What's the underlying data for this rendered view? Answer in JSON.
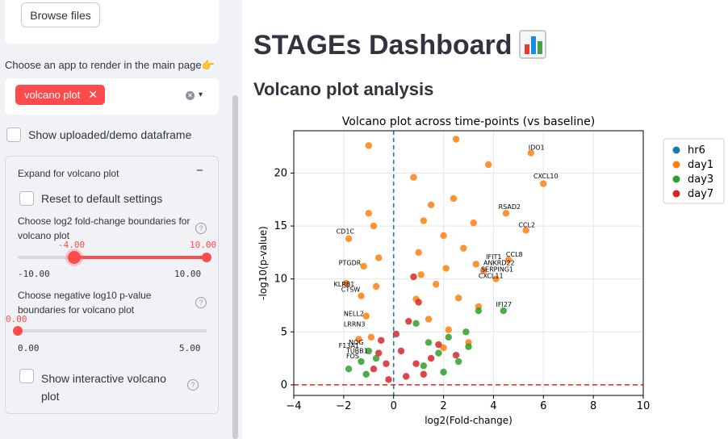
{
  "sidebar": {
    "browse_label": "Browse files",
    "choose_app_label": "Choose an app to render in the main page👉",
    "selected_tag": "volcano plot",
    "tag_remove": "✕",
    "clear_icon": "×",
    "dropdown_icon": "▾",
    "show_df_label": "Show uploaded/demo dataframe",
    "expander": {
      "title": "Expand for volcano plot",
      "collapse_icon": "−",
      "reset_label": "Reset to default settings",
      "fc_label": "Choose log2 fold-change boundaries for volcano plot",
      "fc_low": "-4.00",
      "fc_high": "10.00",
      "fc_min": "-10.00",
      "fc_max": "10.00",
      "pval_label": "Choose negative log10 p-value boundaries for volcano plot",
      "pval_value": "0.00",
      "pval_min": "0.00",
      "pval_max": "5.00",
      "interactive_label": "Show interactive volcano plot",
      "help_icon": "?"
    }
  },
  "main": {
    "title": "STAGEs Dashboard",
    "subtitle": "Volcano plot analysis"
  },
  "chart_data": {
    "type": "scatter",
    "title": "Volcano plot across time-points (vs baseline)",
    "xlabel": "log2(Fold-change)",
    "ylabel": "-log10(p-value)",
    "xlim": [
      -4,
      10
    ],
    "ylim": [
      -1,
      24
    ],
    "xticks": [
      -4,
      -2,
      0,
      2,
      4,
      6,
      8,
      10
    ],
    "yticks": [
      0,
      5,
      10,
      15,
      20
    ],
    "grid": true,
    "legend_position": "outside-right",
    "reference_lines": {
      "vertical_x": 0,
      "horizontal_y": 0
    },
    "colors": {
      "hr6": "#1f77b4",
      "day1": "#ff7f0e",
      "day3": "#2ca02c",
      "day7": "#d62728",
      "ref_vline": "#1f77b4",
      "ref_hline": "#d62728"
    },
    "series": [
      {
        "name": "hr6",
        "points": []
      },
      {
        "name": "day1",
        "points": [
          [
            -1.0,
            22.6
          ],
          [
            2.5,
            23.2
          ],
          [
            3.8,
            20.8
          ],
          [
            5.5,
            21.9
          ],
          [
            6.0,
            19.0
          ],
          [
            4.5,
            16.2
          ],
          [
            5.3,
            14.6
          ],
          [
            -1.8,
            13.8
          ],
          [
            -1.2,
            11.2
          ],
          [
            -1.9,
            9.6
          ],
          [
            -1.1,
            6.5
          ],
          [
            1.0,
            12.5
          ],
          [
            2.0,
            14.1
          ],
          [
            3.3,
            11.4
          ],
          [
            3.6,
            10.8
          ],
          [
            4.1,
            10.0
          ],
          [
            4.6,
            11.8
          ],
          [
            3.4,
            7.4
          ],
          [
            1.5,
            17.0
          ],
          [
            0.8,
            19.6
          ],
          [
            1.2,
            15.5
          ],
          [
            2.6,
            8.2
          ],
          [
            2.2,
            5.2
          ],
          [
            3.0,
            4.0
          ],
          [
            2.0,
            3.5
          ],
          [
            -1.3,
            8.4
          ],
          [
            -0.8,
            15.0
          ],
          [
            -0.6,
            12.0
          ],
          [
            -0.9,
            4.5
          ],
          [
            1.7,
            9.5
          ],
          [
            2.8,
            12.9
          ],
          [
            1.4,
            6.2
          ],
          [
            -1.4,
            4.3
          ],
          [
            3.2,
            15.3
          ],
          [
            2.4,
            17.6
          ],
          [
            1.1,
            10.4
          ],
          [
            -0.7,
            9.3
          ],
          [
            0.9,
            8.1
          ],
          [
            -1.0,
            16.2
          ],
          [
            2.1,
            11.0
          ]
        ]
      },
      {
        "name": "day3",
        "points": [
          [
            4.4,
            7.0
          ],
          [
            3.4,
            7.0
          ],
          [
            2.9,
            5.0
          ],
          [
            2.2,
            4.5
          ],
          [
            1.8,
            3.0
          ],
          [
            -1.0,
            3.2
          ],
          [
            -1.3,
            2.2
          ],
          [
            -1.8,
            1.5
          ],
          [
            1.4,
            4.0
          ],
          [
            2.6,
            2.2
          ],
          [
            0.9,
            5.8
          ],
          [
            -0.7,
            2.5
          ],
          [
            1.2,
            1.8
          ],
          [
            3.0,
            3.6
          ],
          [
            2.0,
            1.2
          ],
          [
            -1.1,
            1.0
          ]
        ]
      },
      {
        "name": "day7",
        "points": [
          [
            0.8,
            10.2
          ],
          [
            1.0,
            7.8
          ],
          [
            0.6,
            6.0
          ],
          [
            -0.5,
            4.2
          ],
          [
            0.3,
            3.2
          ],
          [
            -0.3,
            2.0
          ],
          [
            1.5,
            2.5
          ],
          [
            2.5,
            2.8
          ],
          [
            -0.8,
            1.5
          ],
          [
            0.5,
            0.8
          ],
          [
            1.2,
            1.0
          ],
          [
            -0.2,
            0.5
          ],
          [
            0.1,
            4.8
          ],
          [
            1.8,
            3.8
          ],
          [
            -0.6,
            3.0
          ],
          [
            0.9,
            2.0
          ]
        ]
      }
    ],
    "annotations": [
      {
        "text": "IDO1",
        "x": 5.4,
        "y": 22.2
      },
      {
        "text": "CXCL10",
        "x": 5.6,
        "y": 19.5
      },
      {
        "text": "RSAD2",
        "x": 4.2,
        "y": 16.6
      },
      {
        "text": "CCL2",
        "x": 5.0,
        "y": 14.9
      },
      {
        "text": "CD1C",
        "x": -2.3,
        "y": 14.3
      },
      {
        "text": "CCL8",
        "x": 4.5,
        "y": 12.1
      },
      {
        "text": "IFIT1",
        "x": 3.7,
        "y": 11.9
      },
      {
        "text": "ANKRD22",
        "x": 3.6,
        "y": 11.3
      },
      {
        "text": "SERPING1",
        "x": 3.5,
        "y": 10.7
      },
      {
        "text": "CXCL11",
        "x": 3.4,
        "y": 10.1
      },
      {
        "text": "PTGDR",
        "x": -2.2,
        "y": 11.3
      },
      {
        "text": "KLRB1",
        "x": -2.4,
        "y": 9.3
      },
      {
        "text": "CTSW",
        "x": -2.1,
        "y": 8.8
      },
      {
        "text": "IFI27",
        "x": 4.1,
        "y": 7.4
      },
      {
        "text": "NELL2",
        "x": -2.0,
        "y": 6.5
      },
      {
        "text": "LRRN3",
        "x": -2.0,
        "y": 5.5
      },
      {
        "text": "NOG",
        "x": -1.8,
        "y": 3.8
      },
      {
        "text": "F13A1",
        "x": -2.2,
        "y": 3.5
      },
      {
        "text": "TUBB1",
        "x": -1.9,
        "y": 3.0
      },
      {
        "text": "FOS",
        "x": -1.9,
        "y": 2.5
      }
    ]
  }
}
